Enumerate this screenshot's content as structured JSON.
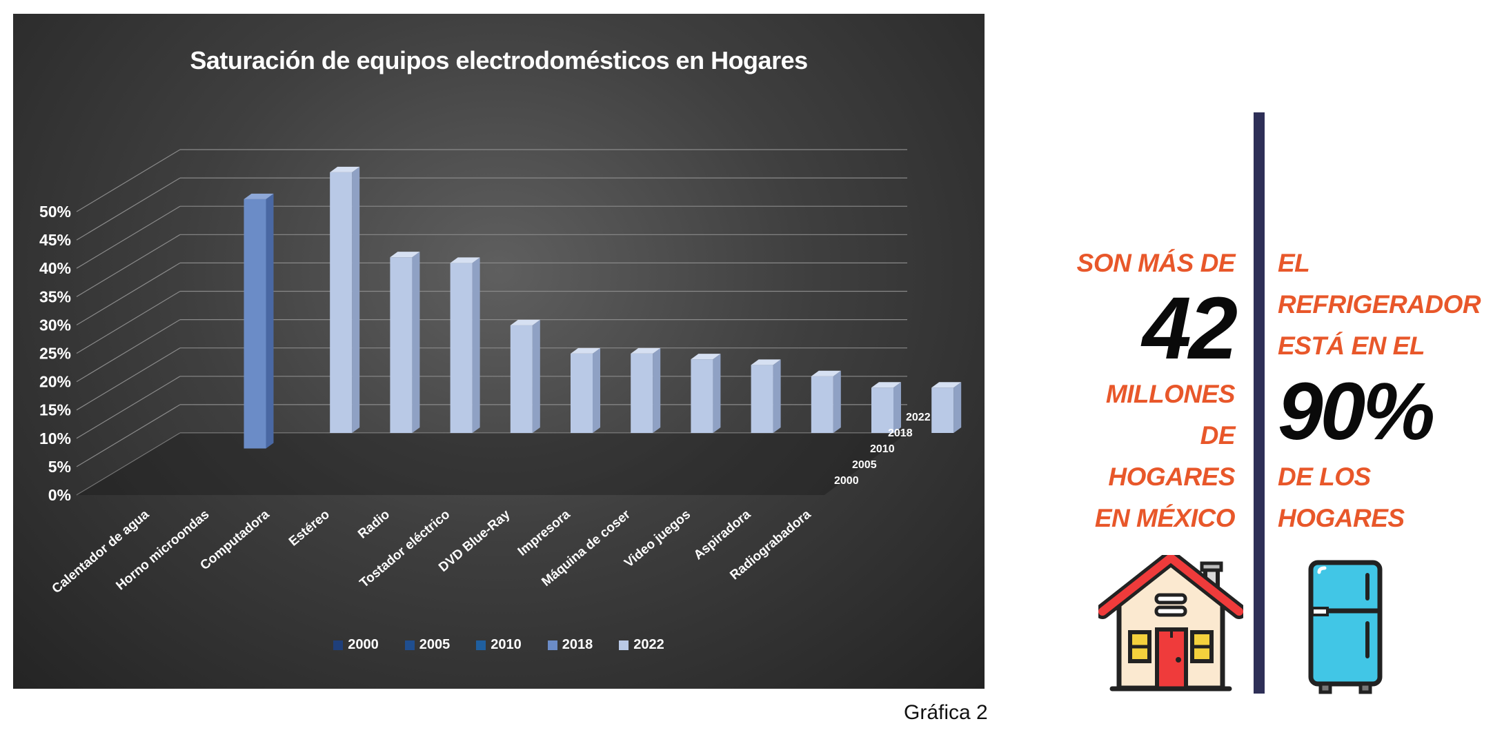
{
  "chart_data": {
    "type": "bar",
    "title": "Saturación de equipos electrodomésticos en Hogares",
    "categories": [
      "Calentador de agua",
      "Horno microondas",
      "Computadora",
      "Estéreo",
      "Radio",
      "Tostador eléctrico",
      "DVD Blue-Ray",
      "Impresora",
      "Máquina de coser",
      "Video juegos",
      "Aspiradora",
      "Radiograbadora"
    ],
    "series": [
      {
        "name": "2000",
        "values": [
          null,
          null,
          null,
          null,
          null,
          null,
          null,
          null,
          null,
          null,
          null,
          null
        ],
        "color": "#1f3f7a"
      },
      {
        "name": "2005",
        "values": [
          null,
          null,
          null,
          null,
          null,
          null,
          null,
          null,
          null,
          null,
          null,
          null
        ],
        "color": "#1f4e8f"
      },
      {
        "name": "2010",
        "values": [
          null,
          null,
          null,
          null,
          null,
          null,
          null,
          null,
          null,
          null,
          null,
          null
        ],
        "color": "#1f5f9f"
      },
      {
        "name": "2018",
        "values": [
          44,
          null,
          null,
          null,
          null,
          null,
          null,
          null,
          null,
          null,
          null,
          null
        ],
        "color": "#6b8cc7"
      },
      {
        "name": "2022",
        "values": [
          null,
          46,
          31,
          30,
          19,
          14,
          14,
          13,
          12,
          10,
          8,
          8
        ],
        "color": "#b9c9e6"
      }
    ],
    "y_ticks": [
      "0%",
      "5%",
      "10%",
      "15%",
      "20%",
      "25%",
      "30%",
      "35%",
      "40%",
      "45%",
      "50%"
    ],
    "depth_labels": [
      "2000",
      "2005",
      "2010",
      "2018",
      "2022"
    ],
    "ylim": [
      0,
      50
    ],
    "legend_position": "bottom",
    "grid": true
  },
  "caption": "Gráfica 2",
  "infographic": {
    "left": {
      "line1": "SON MÁS DE",
      "number": "42",
      "line2": "MILLONES",
      "line3": "DE HOGARES",
      "line4": "EN MÉXICO",
      "icon": "house-icon"
    },
    "right": {
      "line1": "EL REFRIGERADOR",
      "line2": "ESTÁ EN EL",
      "number": "90%",
      "line3": "DE LOS",
      "line4": "HOGARES",
      "icon": "fridge-icon"
    },
    "colors": {
      "accent": "#e8572a",
      "divider": "#2e2f57"
    }
  }
}
